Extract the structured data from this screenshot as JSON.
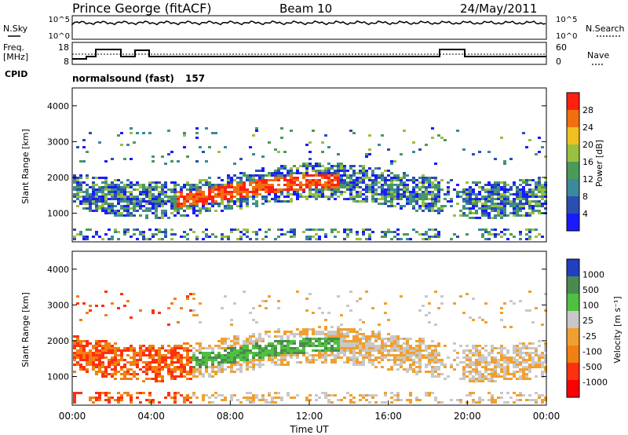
{
  "header": {
    "station": "Prince George (fitACF)",
    "beam": "Beam 10",
    "date": "24/May/2011"
  },
  "noise_panel": {
    "left_label": "N.Sky",
    "right_label": "N.Search",
    "left_ticks": [
      "10^5",
      "10^0"
    ],
    "right_ticks": [
      "10^5",
      "10^0"
    ]
  },
  "freq_panel": {
    "left_label": "Freq.",
    "left_unit": "[MHz]",
    "cpid_label": "CPID",
    "right_label": "Nave",
    "left_ticks": [
      "18",
      "8"
    ],
    "right_ticks": [
      "60",
      "0"
    ]
  },
  "program": {
    "name": "normalsound (fast)",
    "cpid": "157"
  },
  "chart_data": [
    {
      "type": "heatmap",
      "name": "power",
      "ylabel": "Slant Range [km]",
      "yticks": [
        "4000",
        "3000",
        "2000",
        "1000"
      ],
      "ylim": [
        200,
        4500
      ],
      "colorbar_label": "Power [dB]",
      "colorbar_ticks": [
        "28",
        "24",
        "20",
        "16",
        "12",
        "8",
        "4"
      ],
      "colors": [
        "#1a1aff",
        "#2a4fb0",
        "#3a8a9a",
        "#4a9a5a",
        "#9ac040",
        "#f0c020",
        "#f07010",
        "#ff2010"
      ]
    },
    {
      "type": "heatmap",
      "name": "velocity",
      "ylabel": "Slant Range [km]",
      "yticks": [
        "4000",
        "3000",
        "2000",
        "1000"
      ],
      "ylim": [
        200,
        4500
      ],
      "xlabel": "Time UT",
      "xticks": [
        "00:00",
        "04:00",
        "08:00",
        "12:00",
        "16:00",
        "20:00",
        "00:00"
      ],
      "colorbar_label": "Velocity [m s⁻¹]",
      "colorbar_ticks": [
        "1000",
        "500",
        "100",
        "25",
        "-25",
        "-100",
        "-500",
        "-1000"
      ],
      "colors": [
        "#2040c0",
        "#4a8a50",
        "#50c040",
        "#c8c8c8",
        "#f0a030",
        "#f08010",
        "#ff3010",
        "#ff0000"
      ]
    }
  ]
}
